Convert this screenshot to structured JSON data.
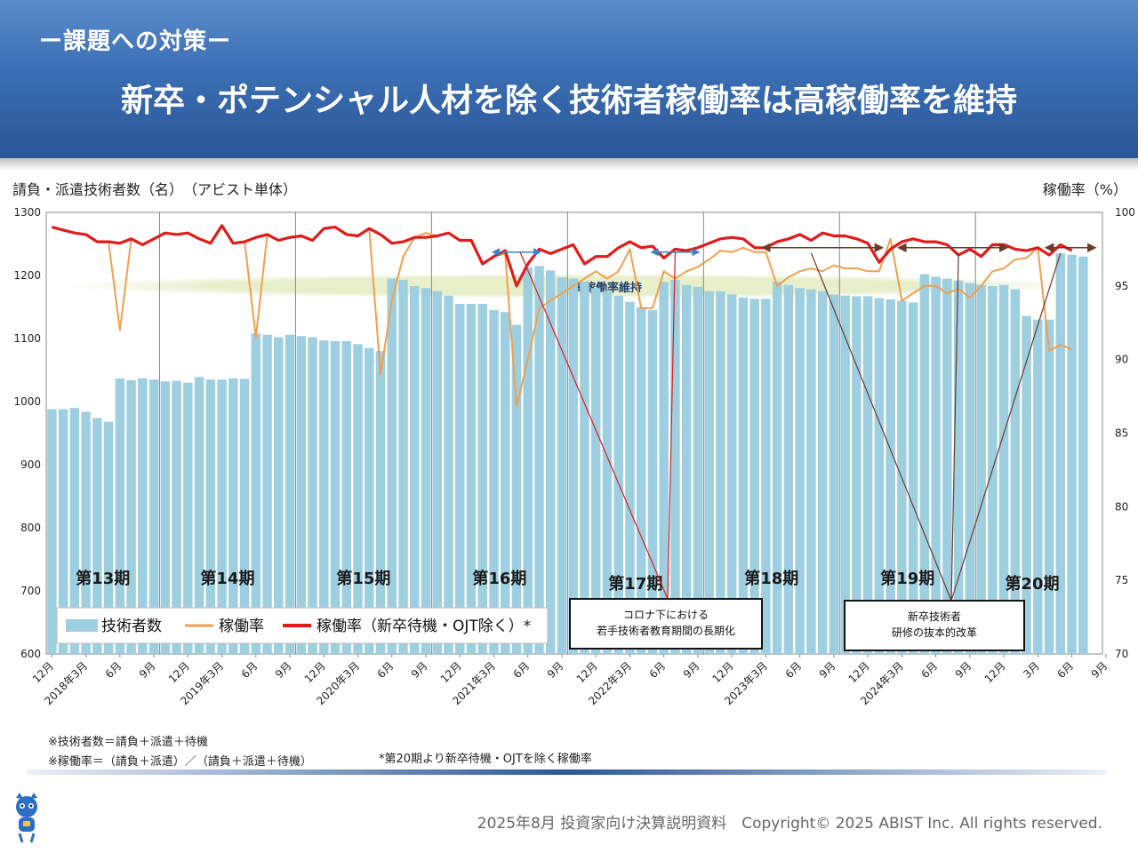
{
  "header": {
    "subtitle": "ー課題への対策ー",
    "title": "新卒・ポテンシャル人材を除く技術者稼働率は高稼働率を維持"
  },
  "axis_titles": {
    "left": "請負・派遣技術者数（名）　（アビスト単体）",
    "right": "稼働率（%）"
  },
  "chart_data": {
    "type": "bar",
    "x": [
      "2017-12",
      "2018-01",
      "2018-02",
      "2018-03",
      "2018-04",
      "2018-05",
      "2018-06",
      "2018-07",
      "2018-08",
      "2018-09",
      "2018-10",
      "2018-11",
      "2018-12",
      "2019-01",
      "2019-02",
      "2019-03",
      "2019-04",
      "2019-05",
      "2019-06",
      "2019-07",
      "2019-08",
      "2019-09",
      "2019-10",
      "2019-11",
      "2019-12",
      "2020-01",
      "2020-02",
      "2020-03",
      "2020-04",
      "2020-05",
      "2020-06",
      "2020-07",
      "2020-08",
      "2020-09",
      "2020-10",
      "2020-11",
      "2020-12",
      "2021-01",
      "2021-02",
      "2021-03",
      "2021-04",
      "2021-05",
      "2021-06",
      "2021-07",
      "2021-08",
      "2021-09",
      "2021-10",
      "2021-11",
      "2021-12",
      "2022-01",
      "2022-02",
      "2022-03",
      "2022-04",
      "2022-05",
      "2022-06",
      "2022-07",
      "2022-08",
      "2022-09",
      "2022-10",
      "2022-11",
      "2022-12",
      "2023-01",
      "2023-02",
      "2023-03",
      "2023-04",
      "2023-05",
      "2023-06",
      "2023-07",
      "2023-08",
      "2023-09",
      "2023-10",
      "2023-11",
      "2023-12",
      "2024-01",
      "2024-02",
      "2024-03",
      "2024-04",
      "2024-05",
      "2024-06",
      "2024-07",
      "2024-08",
      "2024-09",
      "2024-10",
      "2024-11",
      "2024-12",
      "2025-01",
      "2025-02",
      "2025-03",
      "2025-04",
      "2025-05",
      "2025-06",
      "2025-07"
    ],
    "tick_labels": [
      "12月",
      "2018年3月",
      "6月",
      "9月",
      "12月",
      "2019年3月",
      "6月",
      "9月",
      "12月",
      "2020年3月",
      "6月",
      "9月",
      "12月",
      "2021年3月",
      "6月",
      "9月",
      "12月",
      "2022年3月",
      "6月",
      "9月",
      "12月",
      "2023年3月",
      "6月",
      "9月",
      "12月",
      "2024年3月",
      "6月",
      "9月",
      "12月",
      "3月",
      "6月",
      "9月"
    ],
    "series": [
      {
        "name": "技術者数",
        "type": "bar",
        "axis": "left",
        "color": "#9dcfe1",
        "values": [
          988,
          988,
          990,
          984,
          974,
          968,
          1037,
          1034,
          1037,
          1035,
          1032,
          1033,
          1030,
          1039,
          1035,
          1035,
          1037,
          1036,
          1108,
          1106,
          1102,
          1106,
          1104,
          1102,
          1097,
          1096,
          1096,
          1091,
          1085,
          1080,
          1195,
          1193,
          1183,
          1180,
          1175,
          1168,
          1155,
          1155,
          1155,
          1145,
          1142,
          1122,
          1213,
          1215,
          1208,
          1197,
          1195,
          1190,
          1180,
          1175,
          1168,
          1158,
          1150,
          1145,
          1190,
          1193,
          1185,
          1182,
          1175,
          1175,
          1170,
          1165,
          1163,
          1163,
          1190,
          1185,
          1180,
          1178,
          1175,
          1170,
          1168,
          1167,
          1167,
          1164,
          1162,
          1160,
          1157,
          1202,
          1198,
          1195,
          1192,
          1188,
          1185,
          1183,
          1185,
          1178,
          1136,
          1130,
          1130,
          1235,
          1233,
          1230
        ]
      },
      {
        "name": "稼働率",
        "type": "line",
        "axis": "right",
        "color": "#f0a050",
        "values": [
          99.0,
          98.8,
          98.6,
          98.5,
          98.0,
          98.0,
          92.0,
          98.2,
          97.8,
          98.2,
          98.6,
          98.5,
          98.6,
          98.2,
          97.9,
          99.1,
          97.9,
          98.0,
          91.5,
          98.5,
          98.1,
          98.3,
          98.4,
          98.1,
          98.9,
          99.0,
          98.5,
          98.4,
          98.9,
          89.0,
          94.0,
          97.0,
          98.3,
          98.6,
          98.4,
          98.6,
          98.1,
          98.1,
          96.5,
          97.0,
          97.2,
          86.8,
          90.0,
          93.5,
          94.0,
          94.5,
          95.0,
          95.5,
          96.0,
          95.5,
          96.0,
          97.5,
          93.5,
          93.5,
          96.0,
          95.5,
          96.0,
          96.3,
          96.8,
          97.4,
          97.3,
          97.6,
          97.3,
          97.3,
          95.0,
          95.6,
          96.0,
          96.2,
          96.0,
          96.4,
          96.2,
          96.2,
          96.0,
          96.0,
          98.2,
          94.0,
          94.5,
          95.0,
          95.0,
          94.5,
          94.8,
          94.2,
          95.0,
          96.0,
          96.2,
          96.8,
          96.9,
          97.6,
          90.6,
          91.0,
          90.7,
          null
        ]
      },
      {
        "name": "稼働率（新卒待機・OJT除く）*",
        "type": "line",
        "axis": "right",
        "color": "#e31a1a",
        "values": [
          99.0,
          98.8,
          98.6,
          98.5,
          98.0,
          98.0,
          97.9,
          98.2,
          97.8,
          98.2,
          98.6,
          98.5,
          98.6,
          98.2,
          97.9,
          99.1,
          97.9,
          98.0,
          98.3,
          98.5,
          98.1,
          98.3,
          98.4,
          98.1,
          98.9,
          99.0,
          98.5,
          98.4,
          98.9,
          98.5,
          97.9,
          98.0,
          98.3,
          98.3,
          98.4,
          98.6,
          98.1,
          98.1,
          96.5,
          97.0,
          97.4,
          95.0,
          96.5,
          97.5,
          97.2,
          97.5,
          97.8,
          96.5,
          97.0,
          97.0,
          97.6,
          98.0,
          97.6,
          97.7,
          96.9,
          97.5,
          97.4,
          97.6,
          97.9,
          98.2,
          98.3,
          98.2,
          97.6,
          97.6,
          98.0,
          98.2,
          98.5,
          98.1,
          98.6,
          98.4,
          98.4,
          98.2,
          97.9,
          96.6,
          97.5,
          98.0,
          98.2,
          98.0,
          98.0,
          97.8,
          97.1,
          97.5,
          97.0,
          97.8,
          97.8,
          97.5,
          97.4,
          97.6,
          97.1,
          97.8,
          97.4,
          null
        ]
      }
    ],
    "left_axis": {
      "min": 600,
      "max": 1300,
      "ticks": [
        600,
        700,
        800,
        900,
        1000,
        1100,
        1200,
        1300
      ]
    },
    "right_axis": {
      "min": 70,
      "max": 100,
      "ticks": [
        70,
        75,
        80,
        85,
        90,
        95,
        100
      ]
    },
    "periods": [
      {
        "label": "第13期",
        "start": "2017-12",
        "end": "2018-09"
      },
      {
        "label": "第14期",
        "start": "2018-10",
        "end": "2019-09"
      },
      {
        "label": "第15期",
        "start": "2019-10",
        "end": "2020-09"
      },
      {
        "label": "第16期",
        "start": "2020-10",
        "end": "2021-09"
      },
      {
        "label": "第17期",
        "start": "2021-10",
        "end": "2022-09"
      },
      {
        "label": "第18期",
        "start": "2022-10",
        "end": "2023-09"
      },
      {
        "label": "第19期",
        "start": "2023-10",
        "end": "2024-09"
      },
      {
        "label": "第20期",
        "start": "2024-10",
        "end": "2025-07"
      }
    ],
    "band_label": "高稼働率維持",
    "annotations": [
      {
        "text_lines": [
          "コロナ下における",
          "若手技術者教育期間の長期化"
        ]
      },
      {
        "text_lines": [
          "新卒技術者",
          "研修の抜本的改革"
        ]
      }
    ],
    "legend_position": "bottom-left"
  },
  "notes": {
    "note1": "※技術者数＝請負＋派遣＋待機",
    "note2": "※稼働率＝（請負＋派遣）／（請負＋派遣＋待機）",
    "note3": "*第20期より新卒待機・OJTを除く稼働率"
  },
  "footer": "2025年8月 投資家向け決算説明資料　Copyright© 2025 ABIST Inc. All rights reserved.",
  "colors": {
    "header": "#3b6eb3",
    "bar": "#9dcfe1",
    "line_orange": "#f0a050",
    "line_red": "#e31a1a",
    "arrow_blue": "#3b82c6",
    "arrow_brown": "#6b3a2a"
  }
}
